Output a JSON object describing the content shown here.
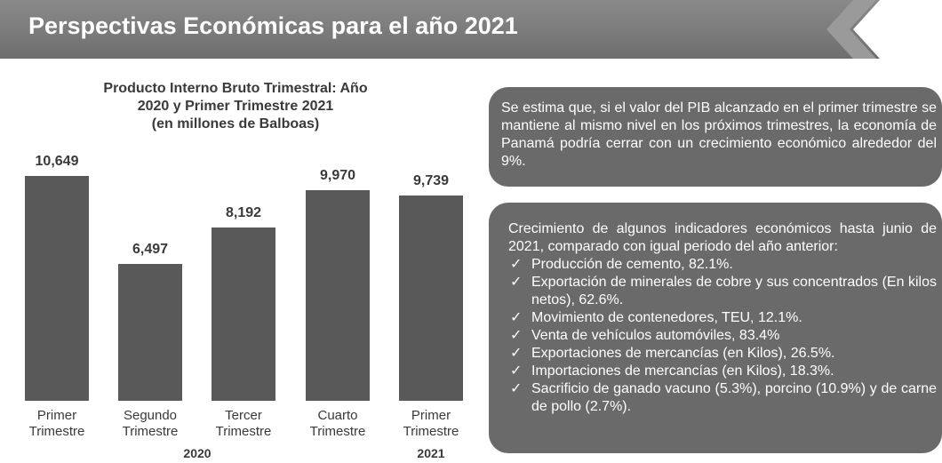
{
  "header": {
    "title": "Perspectivas Económicas para el año 2021"
  },
  "chart_data": {
    "type": "bar",
    "title": "Producto Interno Bruto Trimestral: Año 2020 y Primer Trimestre 2021",
    "subtitle": "(en millones de Balboas)",
    "categories": [
      "Primer Trimestre",
      "Segundo Trimestre",
      "Tercer Trimestre",
      "Cuarto Trimestre",
      "Primer Trimestre"
    ],
    "groups": [
      "2020",
      "2021"
    ],
    "values": [
      10649,
      6497,
      8192,
      9970,
      9739
    ],
    "value_labels": [
      "10,649",
      "6,497",
      "8,192",
      "9,970",
      "9,739"
    ],
    "color": "#595959"
  },
  "box1": {
    "text": "Se estima que, si el valor del PIB alcanzado en el primer trimestre se mantiene al mismo nivel en los próximos trimestres, la economía de Panamá podría cerrar con un crecimiento económico alrededor del 9%."
  },
  "box2": {
    "intro": "Crecimiento de algunos indicadores económicos hasta junio de 2021, comparado con igual periodo del año anterior:",
    "items": [
      "Producción de cemento, 82.1%.",
      "Exportación de minerales de cobre y sus concentrados (En kilos netos), 62.6%.",
      "Movimiento de contenedores, TEU, 12.1%.",
      "Venta de vehículos automóviles, 83.4%",
      "Exportaciones de mercancías (en Kilos), 26.5%.",
      "Importaciones de mercancías (en Kilos), 18.3%.",
      "Sacrificio de ganado vacuno (5.3%), porcino (10.9%) y de carne de pollo (2.7%)."
    ]
  }
}
